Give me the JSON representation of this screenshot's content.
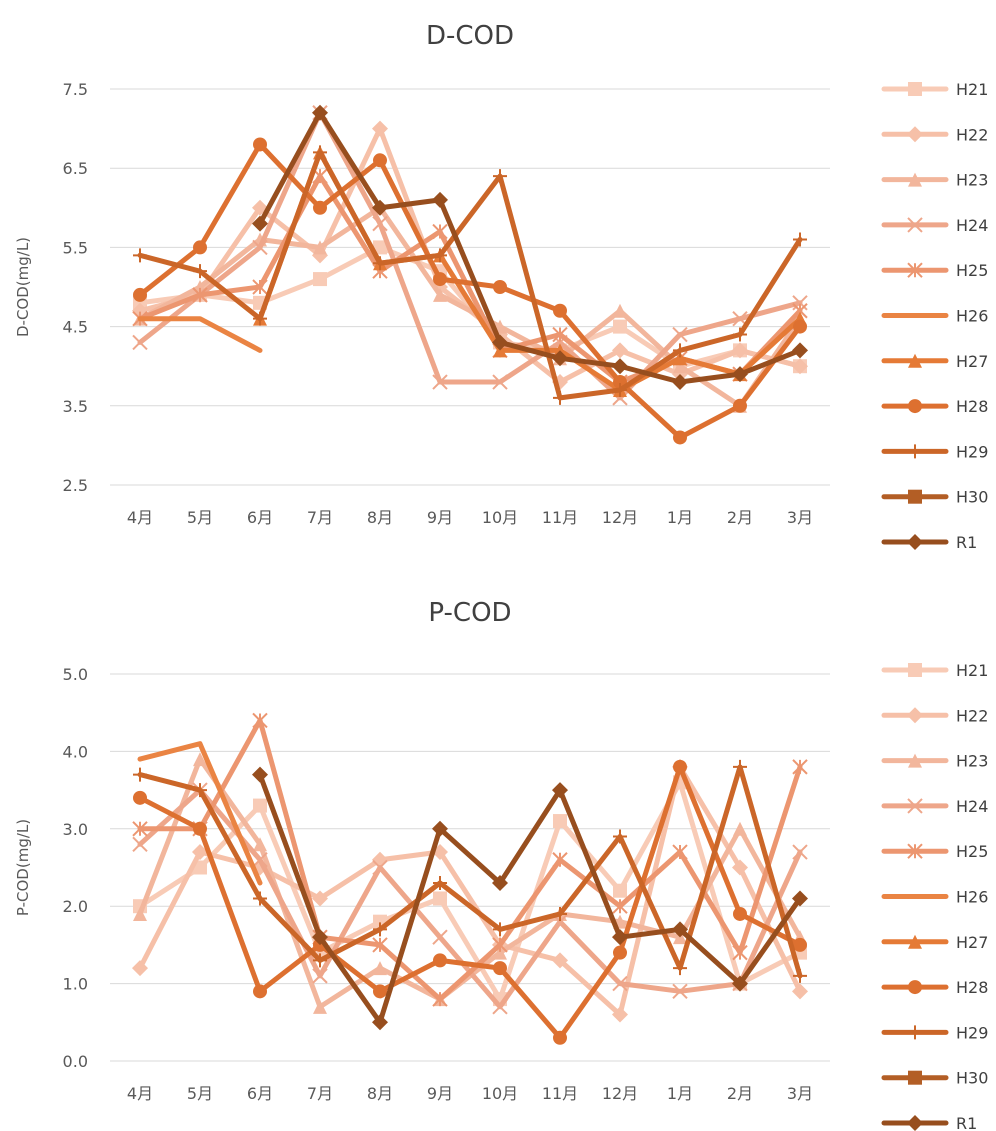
{
  "chart_data": [
    {
      "type": "line",
      "title": "D-COD",
      "ylabel": "D-COD(mg/L)",
      "xlabel": "",
      "categories": [
        "4月",
        "5月",
        "6月",
        "7月",
        "8月",
        "9月",
        "10月",
        "11月",
        "12月",
        "1月",
        "2月",
        "3月"
      ],
      "ylim": [
        2.5,
        7.5
      ],
      "yticks": [
        "2.5",
        "3.5",
        "4.5",
        "5.5",
        "6.5",
        "7.5"
      ],
      "grid": true,
      "legend_position": "right",
      "series": [
        {
          "name": "H21",
          "color": "#f8cbb6",
          "marker": "square",
          "values": [
            4.8,
            4.9,
            4.8,
            5.1,
            5.5,
            5.2,
            4.3,
            4.2,
            4.5,
            4.0,
            4.2,
            4.0
          ]
        },
        {
          "name": "H22",
          "color": "#f6c0a8",
          "marker": "diamond",
          "values": [
            4.7,
            4.9,
            6.0,
            5.4,
            7.0,
            5.0,
            4.4,
            3.8,
            4.2,
            3.9,
            4.2,
            4.0
          ]
        },
        {
          "name": "H23",
          "color": "#f2b69c",
          "marker": "triangle",
          "values": [
            4.6,
            5.0,
            5.6,
            5.5,
            6.0,
            4.9,
            4.5,
            4.1,
            4.7,
            4.0,
            3.5,
            4.6
          ]
        },
        {
          "name": "H24",
          "color": "#eea68a",
          "marker": "x",
          "values": [
            4.3,
            4.9,
            5.5,
            7.2,
            5.8,
            3.8,
            3.8,
            4.3,
            3.6,
            4.4,
            4.6,
            4.8
          ]
        },
        {
          "name": "H25",
          "color": "#ec9670",
          "marker": "asterisk",
          "values": [
            4.6,
            4.9,
            5.0,
            6.4,
            5.2,
            5.7,
            4.2,
            4.4,
            3.8,
            4.1,
            3.9,
            4.7
          ]
        },
        {
          "name": "H26",
          "color": "#ea8443",
          "marker": "none",
          "values": [
            4.6,
            4.6,
            4.2,
            null,
            null,
            null,
            null,
            null,
            null,
            null,
            null,
            null
          ]
        },
        {
          "name": "H27",
          "color": "#e57a36",
          "marker": "triangle",
          "values": [
            null,
            null,
            4.6,
            6.7,
            5.3,
            5.4,
            4.2,
            4.2,
            3.7,
            4.1,
            3.9,
            4.6
          ]
        },
        {
          "name": "H28",
          "color": "#dd7030",
          "marker": "circle",
          "values": [
            4.9,
            5.5,
            6.8,
            6.0,
            6.6,
            5.1,
            5.0,
            4.7,
            3.8,
            3.1,
            3.5,
            4.5
          ]
        },
        {
          "name": "H29",
          "color": "#cb6628",
          "marker": "plus",
          "values": [
            5.4,
            5.2,
            4.6,
            6.7,
            5.3,
            5.4,
            6.4,
            3.6,
            3.7,
            4.2,
            4.4,
            5.6
          ]
        },
        {
          "name": "H30",
          "color": "#b35e25",
          "marker": "square",
          "values": [
            null,
            null,
            null,
            null,
            null,
            null,
            null,
            null,
            null,
            null,
            null,
            null
          ]
        },
        {
          "name": "R1",
          "color": "#974e1e",
          "marker": "diamond",
          "values": [
            null,
            null,
            5.8,
            7.2,
            6.0,
            6.1,
            4.3,
            4.1,
            4.0,
            3.8,
            3.9,
            4.2
          ]
        }
      ]
    },
    {
      "type": "line",
      "title": "P-COD",
      "ylabel": "P-COD(mg/L)",
      "xlabel": "",
      "categories": [
        "4月",
        "5月",
        "6月",
        "7月",
        "8月",
        "9月",
        "10月",
        "11月",
        "12月",
        "1月",
        "2月",
        "3月"
      ],
      "ylim": [
        0.0,
        5.0
      ],
      "yticks": [
        "0.0",
        "1.0",
        "2.0",
        "3.0",
        "4.0",
        "5.0"
      ],
      "grid": true,
      "legend_position": "right",
      "series": [
        {
          "name": "H21",
          "color": "#f8cbb6",
          "marker": "square",
          "values": [
            2.0,
            2.5,
            3.3,
            1.4,
            1.8,
            2.1,
            0.8,
            3.1,
            2.2,
            3.6,
            1.0,
            1.4
          ]
        },
        {
          "name": "H22",
          "color": "#f6c0a8",
          "marker": "diamond",
          "values": [
            1.2,
            2.7,
            2.5,
            2.1,
            2.6,
            2.7,
            1.5,
            1.3,
            0.6,
            3.8,
            2.5,
            0.9
          ]
        },
        {
          "name": "H23",
          "color": "#f2b69c",
          "marker": "triangle",
          "values": [
            1.9,
            3.9,
            2.8,
            0.7,
            1.2,
            0.8,
            1.4,
            1.9,
            1.8,
            1.6,
            3.0,
            1.6
          ]
        },
        {
          "name": "H24",
          "color": "#eea68a",
          "marker": "x",
          "values": [
            2.8,
            3.5,
            2.6,
            1.1,
            2.5,
            1.6,
            0.7,
            1.8,
            1.0,
            0.9,
            1.0,
            2.7
          ]
        },
        {
          "name": "H25",
          "color": "#ec9670",
          "marker": "asterisk",
          "values": [
            3.0,
            3.0,
            4.4,
            1.6,
            1.5,
            0.8,
            1.5,
            2.6,
            2.0,
            2.7,
            1.4,
            3.8
          ]
        },
        {
          "name": "H26",
          "color": "#ea8443",
          "marker": "none",
          "values": [
            3.9,
            4.1,
            2.3,
            null,
            null,
            null,
            null,
            null,
            null,
            null,
            null,
            null
          ]
        },
        {
          "name": "H27",
          "color": "#e57a36",
          "marker": "triangle",
          "values": [
            null,
            null,
            null,
            null,
            null,
            null,
            null,
            null,
            null,
            null,
            null,
            null
          ]
        },
        {
          "name": "H28",
          "color": "#dd7030",
          "marker": "circle",
          "values": [
            3.4,
            3.0,
            0.9,
            1.5,
            0.9,
            1.3,
            1.2,
            0.3,
            1.4,
            3.8,
            1.9,
            1.5
          ]
        },
        {
          "name": "H29",
          "color": "#cb6628",
          "marker": "plus",
          "values": [
            3.7,
            3.5,
            2.1,
            1.3,
            1.7,
            2.3,
            1.7,
            1.9,
            2.9,
            1.2,
            3.8,
            1.1
          ]
        },
        {
          "name": "H30",
          "color": "#b35e25",
          "marker": "square",
          "values": [
            null,
            null,
            null,
            null,
            null,
            null,
            null,
            null,
            null,
            null,
            null,
            null
          ]
        },
        {
          "name": "R1",
          "color": "#974e1e",
          "marker": "diamond",
          "values": [
            null,
            null,
            3.7,
            1.6,
            0.5,
            3.0,
            2.3,
            3.5,
            1.6,
            1.7,
            1.0,
            2.1
          ]
        }
      ]
    }
  ]
}
